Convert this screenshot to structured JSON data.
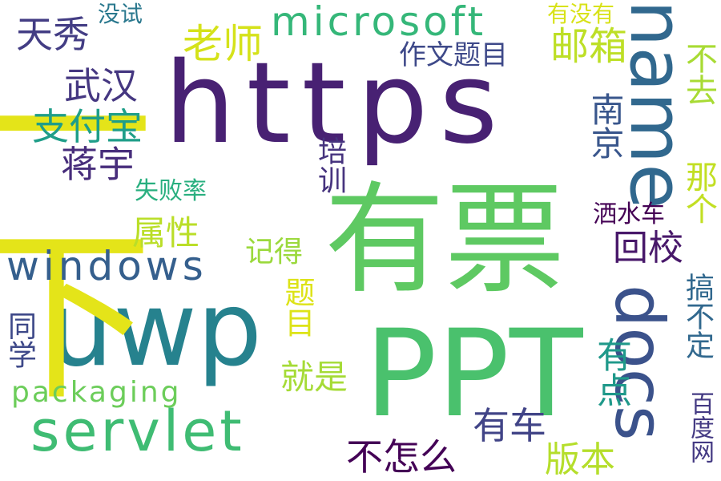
{
  "words": [
    {
      "id": "https",
      "text": "https",
      "color": "#482173"
    },
    {
      "id": "uwp",
      "text": "uwp",
      "color": "#26828e"
    },
    {
      "id": "youpiao",
      "text": "有票",
      "color": "#5ec962"
    },
    {
      "id": "ppt",
      "text": "PPT",
      "color": "#4ac16d"
    },
    {
      "id": "yixia",
      "text": "一下",
      "color": "#e4e419"
    },
    {
      "id": "name",
      "text": "name",
      "color": "#31688e"
    },
    {
      "id": "docs",
      "text": "docs",
      "color": "#3b528b"
    },
    {
      "id": "servlet",
      "text": "servlet",
      "color": "#3fbc73"
    },
    {
      "id": "windows",
      "text": "windows",
      "color": "#355f8d"
    },
    {
      "id": "microsoft",
      "text": "microsoft",
      "color": "#35b779"
    },
    {
      "id": "packaging",
      "text": "packaging",
      "color": "#6ccd5a"
    },
    {
      "id": "tianxiu",
      "text": "天秀",
      "color": "#433d84"
    },
    {
      "id": "meishi",
      "text": "没试",
      "color": "#2a788e"
    },
    {
      "id": "laoshi",
      "text": "老师",
      "color": "#d5e21a"
    },
    {
      "id": "wuhan",
      "text": "武汉",
      "color": "#453781"
    },
    {
      "id": "zuowen",
      "text": "作文题目",
      "color": "#3e4989"
    },
    {
      "id": "youmeiyou",
      "text": "有没有",
      "color": "#d8e219"
    },
    {
      "id": "youxiang",
      "text": "邮箱",
      "color": "#bddf26"
    },
    {
      "id": "buqu",
      "text": "不去",
      "color": "#a8db34"
    },
    {
      "id": "zhifubao",
      "text": "支付宝",
      "color": "#1f9e89"
    },
    {
      "id": "nanjing",
      "text": "南京",
      "color": "#39568c"
    },
    {
      "id": "jiangyu",
      "text": "蒋宇",
      "color": "#472d7b"
    },
    {
      "id": "peixun",
      "text": "培训",
      "color": "#46337e"
    },
    {
      "id": "shibailv",
      "text": "失败率",
      "color": "#29af7f"
    },
    {
      "id": "nage",
      "text": "那个",
      "color": "#c2df23"
    },
    {
      "id": "sashuiche",
      "text": "洒水车",
      "color": "#440154"
    },
    {
      "id": "shuxing",
      "text": "属性",
      "color": "#bade28"
    },
    {
      "id": "huixiao",
      "text": "回校",
      "color": "#48186a"
    },
    {
      "id": "jide",
      "text": "记得",
      "color": "#9bd93c"
    },
    {
      "id": "timu",
      "text": "题目",
      "color": "#dde318"
    },
    {
      "id": "gaobuding",
      "text": "搞不定",
      "color": "#31688e"
    },
    {
      "id": "tongxue",
      "text": "同学",
      "color": "#3e4989"
    },
    {
      "id": "jiushi",
      "text": "就是",
      "color": "#a5db36"
    },
    {
      "id": "youdian",
      "text": "有点",
      "color": "#1f998a"
    },
    {
      "id": "youche",
      "text": "有车",
      "color": "#414487"
    },
    {
      "id": "buzenme",
      "text": "不怎么",
      "color": "#440256"
    },
    {
      "id": "banben",
      "text": "版本",
      "color": "#b5de2b"
    },
    {
      "id": "baiduwang",
      "text": "百度网",
      "color": "#443a83"
    }
  ]
}
